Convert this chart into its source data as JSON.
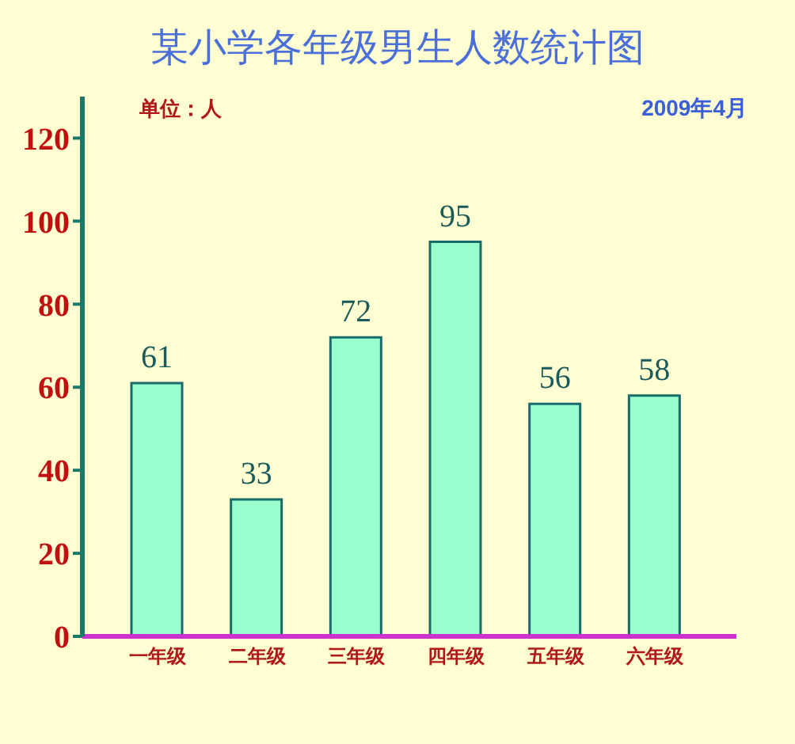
{
  "chart_data": {
    "type": "bar",
    "title": "某小学各年级男生人数统计图",
    "annotations": [
      "单位：人",
      "2009年4月"
    ],
    "categories": [
      "一年级",
      "二年级",
      "三年级",
      "四年级",
      "五年级",
      "六年级"
    ],
    "values": [
      61,
      33,
      72,
      95,
      56,
      58
    ],
    "color": "#99ffcc",
    "ylim": [
      0,
      130
    ],
    "yticks": [
      0,
      20,
      40,
      60,
      80,
      100,
      120
    ],
    "grid": false,
    "data_labels": true
  }
}
